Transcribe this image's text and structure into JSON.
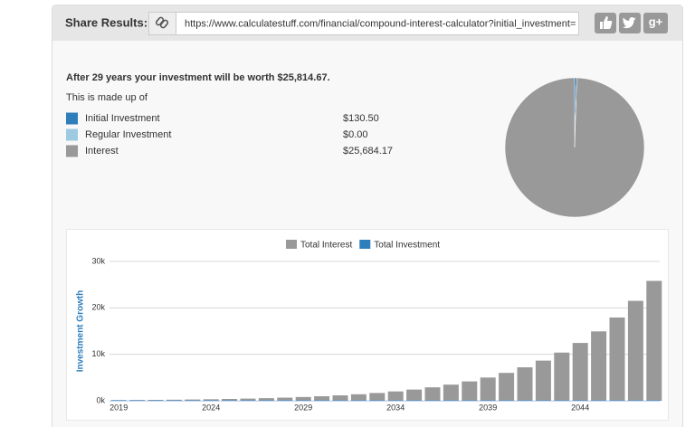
{
  "share": {
    "label": "Share Results:",
    "url": "https://www.calculatestuff.com/financial/compound-interest-calculator?initial_investment=",
    "gplus": "g+"
  },
  "summary": {
    "headline": "After 29 years your investment will be worth $25,814.67.",
    "intro": "This is made up of",
    "items": [
      {
        "label": "Initial Investment",
        "value": "$130.50"
      },
      {
        "label": "Regular Investment",
        "value": "$0.00"
      },
      {
        "label": "Interest",
        "value": "$25,684.17"
      }
    ]
  },
  "chart_data": [
    {
      "type": "pie",
      "values": [
        130.5,
        0,
        25684.17
      ],
      "colors": [
        "#2f7ebc",
        "#9ecae1",
        "#999999"
      ]
    },
    {
      "type": "bar",
      "stacked": true,
      "ylabel": "Investment Growth",
      "legend": "top",
      "grid": true,
      "categories": [
        "2019",
        null,
        null,
        null,
        null,
        "2024",
        null,
        null,
        null,
        null,
        "2029",
        null,
        null,
        null,
        null,
        "2034",
        null,
        null,
        null,
        null,
        "2039",
        null,
        null,
        null,
        null,
        "2044",
        null,
        null,
        null,
        null
      ],
      "series": [
        {
          "name": "Total Interest",
          "color": "#999999",
          "values": [
            0,
            26.1,
            57.42,
            95,
            140.1,
            194.22,
            259.17,
            337.1,
            430.62,
            542.85,
            677.52,
            839.12,
            1033.05,
            1265.76,
            1545.01,
            1880.11,
            2282.23,
            2764.78,
            3343.83,
            4038.7,
            4872.54,
            5873.15,
            7073.88,
            8514.75,
            10243.8,
            12318.66,
            14808.49,
            17796.29,
            21381.65,
            25684.17
          ]
        },
        {
          "name": "Total Investment",
          "color": "#2f7ebc",
          "values": [
            130.5,
            130.5,
            130.5,
            130.5,
            130.5,
            130.5,
            130.5,
            130.5,
            130.5,
            130.5,
            130.5,
            130.5,
            130.5,
            130.5,
            130.5,
            130.5,
            130.5,
            130.5,
            130.5,
            130.5,
            130.5,
            130.5,
            130.5,
            130.5,
            130.5,
            130.5,
            130.5,
            130.5,
            130.5,
            130.5
          ]
        }
      ],
      "ylim": [
        0,
        30000
      ],
      "yticks": [
        {
          "value": 0,
          "label": "0k"
        },
        {
          "value": 10000,
          "label": "10k"
        },
        {
          "value": 20000,
          "label": "20k"
        },
        {
          "value": 30000,
          "label": "30k"
        }
      ]
    }
  ]
}
